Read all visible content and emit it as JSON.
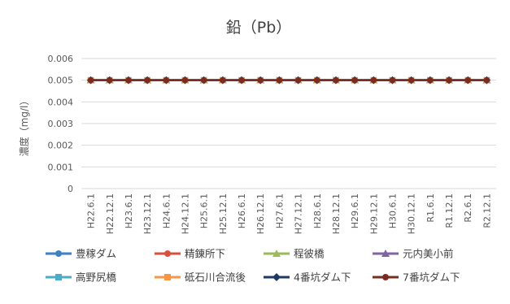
{
  "chart_data": {
    "type": "line",
    "title": "鉛（Pb）",
    "ylabel": "濃度（mg/l）",
    "xlabel": "",
    "ylim": [
      0,
      0.006
    ],
    "yticks": [
      "0",
      "0.001",
      "0.002",
      "0.003",
      "0.004",
      "0.005",
      "0.006"
    ],
    "ytick_values": [
      0,
      0.001,
      0.002,
      0.003,
      0.004,
      0.005,
      0.006
    ],
    "grid": true,
    "legend_position": "bottom",
    "categories": [
      "H22.6.1",
      "H22.12.1",
      "H23.6.1",
      "H23.12.1",
      "H24.6.1",
      "H24.12.1",
      "H25.6.1",
      "H25.12.1",
      "H26.6.1",
      "H26.12.1",
      "H27.6.1",
      "H27.12.1",
      "H28.6.1",
      "H28.12.1",
      "H29.6.1",
      "H29.12.1",
      "H30.6.1",
      "H30.12.1",
      "R1.6.1",
      "R1.12.1",
      "R2.6.1",
      "R2.12.1"
    ],
    "series": [
      {
        "name": "豊稼ダム",
        "color": "#3f7fc4",
        "marker": "circle",
        "values": [
          0.005,
          0.005,
          0.005,
          0.005,
          0.005,
          0.005,
          0.005,
          0.005,
          0.005,
          0.005,
          0.005,
          0.005,
          0.005,
          0.005,
          0.005,
          0.005,
          0.005,
          0.005,
          0.005,
          0.005,
          0.005,
          0.005
        ]
      },
      {
        "name": "精錬所下",
        "color": "#d94f3d",
        "marker": "circle",
        "values": [
          0.005,
          0.005,
          0.005,
          0.005,
          0.005,
          0.005,
          0.005,
          0.005,
          0.005,
          0.005,
          0.005,
          0.005,
          0.005,
          0.005,
          0.005,
          0.005,
          0.005,
          0.005,
          0.005,
          0.005,
          0.005,
          0.005
        ]
      },
      {
        "name": "程彼橋",
        "color": "#9bbb59",
        "marker": "triangle",
        "values": [
          0.005,
          0.005,
          0.005,
          0.005,
          0.005,
          0.005,
          0.005,
          0.005,
          0.005,
          0.005,
          0.005,
          0.005,
          0.005,
          0.005,
          0.005,
          0.005,
          0.005,
          0.005,
          0.005,
          0.005,
          0.005,
          0.005
        ]
      },
      {
        "name": "元内美小前",
        "color": "#8064a2",
        "marker": "triangle",
        "values": [
          0.005,
          0.005,
          0.005,
          0.005,
          0.005,
          0.005,
          0.005,
          0.005,
          0.005,
          0.005,
          0.005,
          0.005,
          0.005,
          0.005,
          0.005,
          0.005,
          0.005,
          0.005,
          0.005,
          0.005,
          0.005,
          0.005
        ]
      },
      {
        "name": "高野尻橋",
        "color": "#4bacc6",
        "marker": "square",
        "values": [
          0.005,
          0.005,
          0.005,
          0.005,
          0.005,
          0.005,
          0.005,
          0.005,
          0.005,
          0.005,
          0.005,
          0.005,
          0.005,
          0.005,
          0.005,
          0.005,
          0.005,
          0.005,
          0.005,
          0.005,
          0.005,
          0.005
        ]
      },
      {
        "name": "砥石川合流後",
        "color": "#f79646",
        "marker": "square",
        "values": [
          0.005,
          0.005,
          0.005,
          0.005,
          0.005,
          0.005,
          0.005,
          0.005,
          0.005,
          0.005,
          0.005,
          0.005,
          0.005,
          0.005,
          0.005,
          0.005,
          0.005,
          0.005,
          0.005,
          0.005,
          0.005,
          0.005
        ]
      },
      {
        "name": "4番坑ダム下",
        "color": "#1f3864",
        "marker": "diamond",
        "values": [
          0.005,
          0.005,
          0.005,
          0.005,
          0.005,
          0.005,
          0.005,
          0.005,
          0.005,
          0.005,
          0.005,
          0.005,
          0.005,
          0.005,
          0.005,
          0.005,
          0.005,
          0.005,
          0.005,
          0.005,
          0.005,
          0.005
        ]
      },
      {
        "name": "7番坑ダム下",
        "color": "#7b2c20",
        "marker": "circle",
        "values": [
          0.005,
          0.005,
          0.005,
          0.005,
          0.005,
          0.005,
          0.005,
          0.005,
          0.005,
          0.005,
          0.005,
          0.005,
          0.005,
          0.005,
          0.005,
          0.005,
          0.005,
          0.005,
          0.005,
          0.005,
          0.005,
          0.005
        ]
      }
    ]
  }
}
